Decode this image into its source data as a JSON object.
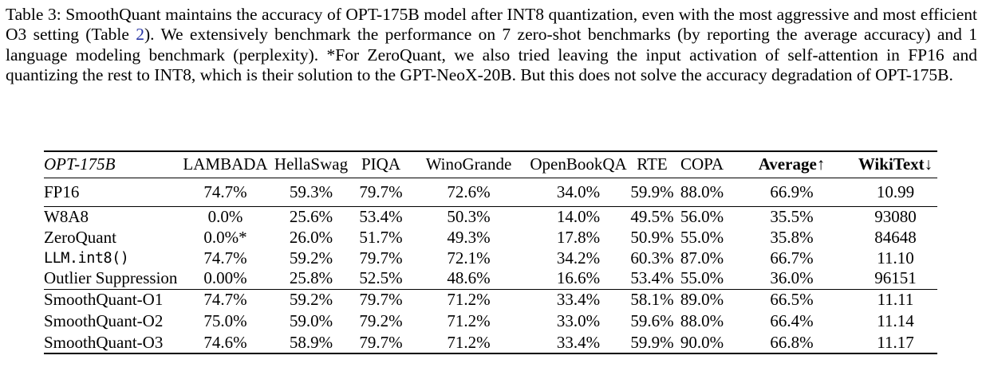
{
  "caption": {
    "text_before_link": "Table 3: SmoothQuant maintains the accuracy of OPT-175B model after INT8 quantization, even with the most aggressive and most efficient O3 setting (Table ",
    "link_text": "2",
    "text_after_link": "). We extensively benchmark the performance on 7 zero-shot benchmarks (by reporting the average accuracy) and 1 language modeling benchmark (perplexity). *For ZeroQuant, we also tried leaving the input activation of self-attention in FP16 and quantizing the rest to INT8, which is their solution to the GPT-NeoX-20B. But this does not solve the accuracy degradation of OPT-175B.",
    "link_color": "#2836a5"
  },
  "table": {
    "header": {
      "model_col": "OPT-175B",
      "columns": [
        {
          "label": "LAMBADA",
          "bold": false
        },
        {
          "label": "HellaSwag",
          "bold": false
        },
        {
          "label": "PIQA",
          "bold": false
        },
        {
          "label": "WinoGrande",
          "bold": false
        },
        {
          "label": "OpenBookQA",
          "bold": false
        },
        {
          "label": "RTE",
          "bold": false
        },
        {
          "label": "COPA",
          "bold": false
        },
        {
          "label": "Average↑",
          "bold": true
        },
        {
          "label": "WikiText↓",
          "bold": true
        }
      ]
    },
    "groups": [
      {
        "rows": [
          {
            "name": "FP16",
            "mono": false,
            "values": [
              "74.7%",
              "59.3%",
              "79.7%",
              "72.6%",
              "34.0%",
              "59.9%",
              "88.0%",
              "66.9%",
              "10.99"
            ]
          }
        ]
      },
      {
        "rows": [
          {
            "name": "W8A8",
            "mono": false,
            "values": [
              "0.0%",
              "25.6%",
              "53.4%",
              "50.3%",
              "14.0%",
              "49.5%",
              "56.0%",
              "35.5%",
              "93080"
            ]
          },
          {
            "name": "ZeroQuant",
            "mono": false,
            "values": [
              "0.0%*",
              "26.0%",
              "51.7%",
              "49.3%",
              "17.8%",
              "50.9%",
              "55.0%",
              "35.8%",
              "84648"
            ]
          },
          {
            "name": "LLM.int8()",
            "mono": true,
            "values": [
              "74.7%",
              "59.2%",
              "79.7%",
              "72.1%",
              "34.2%",
              "60.3%",
              "87.0%",
              "66.7%",
              "11.10"
            ]
          },
          {
            "name": "Outlier Suppression",
            "mono": false,
            "values": [
              "0.00%",
              "25.8%",
              "52.5%",
              "48.6%",
              "16.6%",
              "53.4%",
              "55.0%",
              "36.0%",
              "96151"
            ]
          }
        ]
      },
      {
        "rows": [
          {
            "name": "SmoothQuant-O1",
            "mono": false,
            "values": [
              "74.7%",
              "59.2%",
              "79.7%",
              "71.2%",
              "33.4%",
              "58.1%",
              "89.0%",
              "66.5%",
              "11.11"
            ]
          },
          {
            "name": "SmoothQuant-O2",
            "mono": false,
            "values": [
              "75.0%",
              "59.0%",
              "79.2%",
              "71.2%",
              "33.0%",
              "59.6%",
              "88.0%",
              "66.4%",
              "11.14"
            ]
          },
          {
            "name": "SmoothQuant-O3",
            "mono": false,
            "values": [
              "74.6%",
              "58.9%",
              "79.7%",
              "71.2%",
              "33.4%",
              "59.9%",
              "90.0%",
              "66.8%",
              "11.17"
            ]
          }
        ]
      }
    ]
  }
}
